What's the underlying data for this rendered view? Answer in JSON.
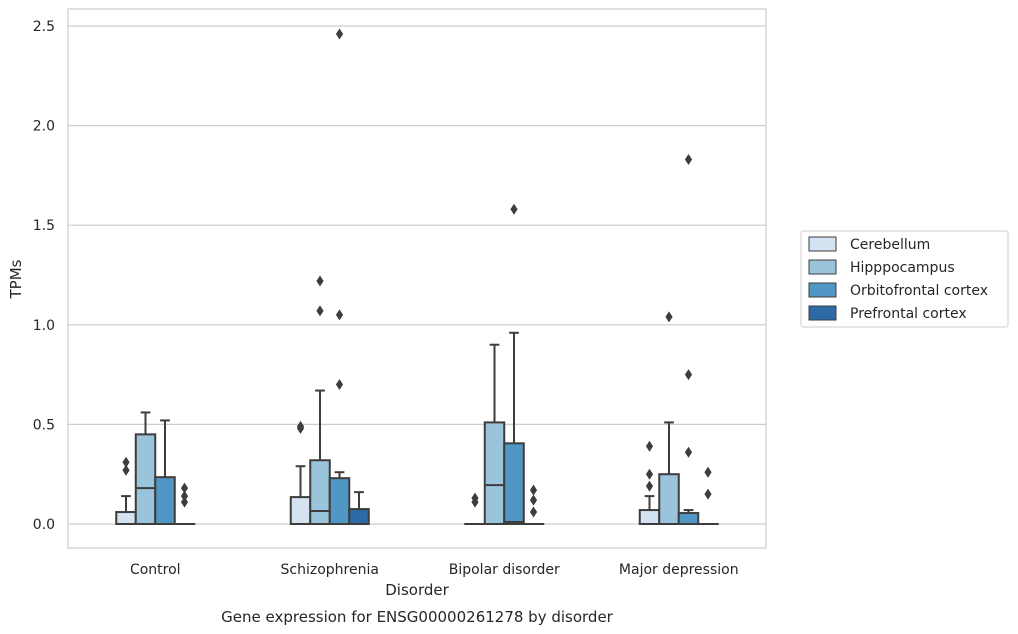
{
  "caption": "Gene expression for ENSG00000261278 by disorder",
  "chart_data": {
    "type": "box",
    "title": "",
    "xlabel": "Disorder",
    "ylabel": "TPMs",
    "ylim": [
      -0.12,
      2.6
    ],
    "yticks": [
      0.0,
      0.5,
      1.0,
      1.5,
      2.0,
      2.5
    ],
    "ytick_labels": [
      "0.0",
      "0.5",
      "1.0",
      "1.5",
      "2.0",
      "2.5"
    ],
    "grid": "horizontal",
    "legend_position": "right",
    "categories": [
      "Control",
      "Schizophrenia",
      "Bipolar disorder",
      "Major depression"
    ],
    "series": [
      {
        "name": "Cerebellum",
        "color": "#d3e3f1",
        "boxes": [
          {
            "q1": 0.0,
            "median": 0.0,
            "q3": 0.06,
            "whisker_low": 0.0,
            "whisker_high": 0.14,
            "outliers": [
              0.27,
              0.31
            ]
          },
          {
            "q1": 0.0,
            "median": 0.0,
            "q3": 0.135,
            "whisker_low": 0.0,
            "whisker_high": 0.29,
            "outliers": [
              0.48,
              0.49
            ]
          },
          {
            "q1": 0.0,
            "median": 0.0,
            "q3": 0.0,
            "whisker_low": 0.0,
            "whisker_high": 0.0,
            "outliers": [
              0.11,
              0.13
            ]
          },
          {
            "q1": 0.0,
            "median": 0.0,
            "q3": 0.07,
            "whisker_low": 0.0,
            "whisker_high": 0.14,
            "outliers": [
              0.19,
              0.25,
              0.39
            ]
          }
        ]
      },
      {
        "name": "Hipppocampus",
        "color": "#9ac3dc",
        "boxes": [
          {
            "q1": 0.0,
            "median": 0.18,
            "q3": 0.45,
            "whisker_low": 0.0,
            "whisker_high": 0.56,
            "outliers": []
          },
          {
            "q1": 0.0,
            "median": 0.065,
            "q3": 0.32,
            "whisker_low": 0.0,
            "whisker_high": 0.67,
            "outliers": [
              1.07,
              1.22
            ]
          },
          {
            "q1": 0.0,
            "median": 0.195,
            "q3": 0.51,
            "whisker_low": 0.0,
            "whisker_high": 0.9,
            "outliers": []
          },
          {
            "q1": 0.0,
            "median": 0.0,
            "q3": 0.25,
            "whisker_low": 0.0,
            "whisker_high": 0.51,
            "outliers": [
              1.04
            ]
          }
        ]
      },
      {
        "name": "Orbitofrontal cortex",
        "color": "#5097c5",
        "boxes": [
          {
            "q1": 0.0,
            "median": 0.0,
            "q3": 0.235,
            "whisker_low": 0.0,
            "whisker_high": 0.52,
            "outliers": []
          },
          {
            "q1": 0.0,
            "median": 0.0,
            "q3": 0.23,
            "whisker_low": 0.0,
            "whisker_high": 0.26,
            "outliers": [
              0.7,
              1.05,
              2.46
            ]
          },
          {
            "q1": 0.0,
            "median": 0.01,
            "q3": 0.405,
            "whisker_low": 0.0,
            "whisker_high": 0.96,
            "outliers": [
              1.58
            ]
          },
          {
            "q1": 0.0,
            "median": 0.0,
            "q3": 0.055,
            "whisker_low": 0.0,
            "whisker_high": 0.07,
            "outliers": [
              0.36,
              0.75,
              1.83
            ]
          }
        ]
      },
      {
        "name": "Prefrontal cortex",
        "color": "#2d6aa6",
        "boxes": [
          {
            "q1": 0.0,
            "median": 0.0,
            "q3": 0.0,
            "whisker_low": 0.0,
            "whisker_high": 0.0,
            "outliers": [
              0.11,
              0.14,
              0.18
            ]
          },
          {
            "q1": 0.0,
            "median": 0.0,
            "q3": 0.075,
            "whisker_low": 0.0,
            "whisker_high": 0.16,
            "outliers": []
          },
          {
            "q1": 0.0,
            "median": 0.0,
            "q3": 0.0,
            "whisker_low": 0.0,
            "whisker_high": 0.0,
            "outliers": [
              0.06,
              0.12,
              0.17
            ]
          },
          {
            "q1": 0.0,
            "median": 0.0,
            "q3": 0.0,
            "whisker_low": 0.0,
            "whisker_high": 0.0,
            "outliers": [
              0.15,
              0.26
            ]
          }
        ]
      }
    ]
  }
}
